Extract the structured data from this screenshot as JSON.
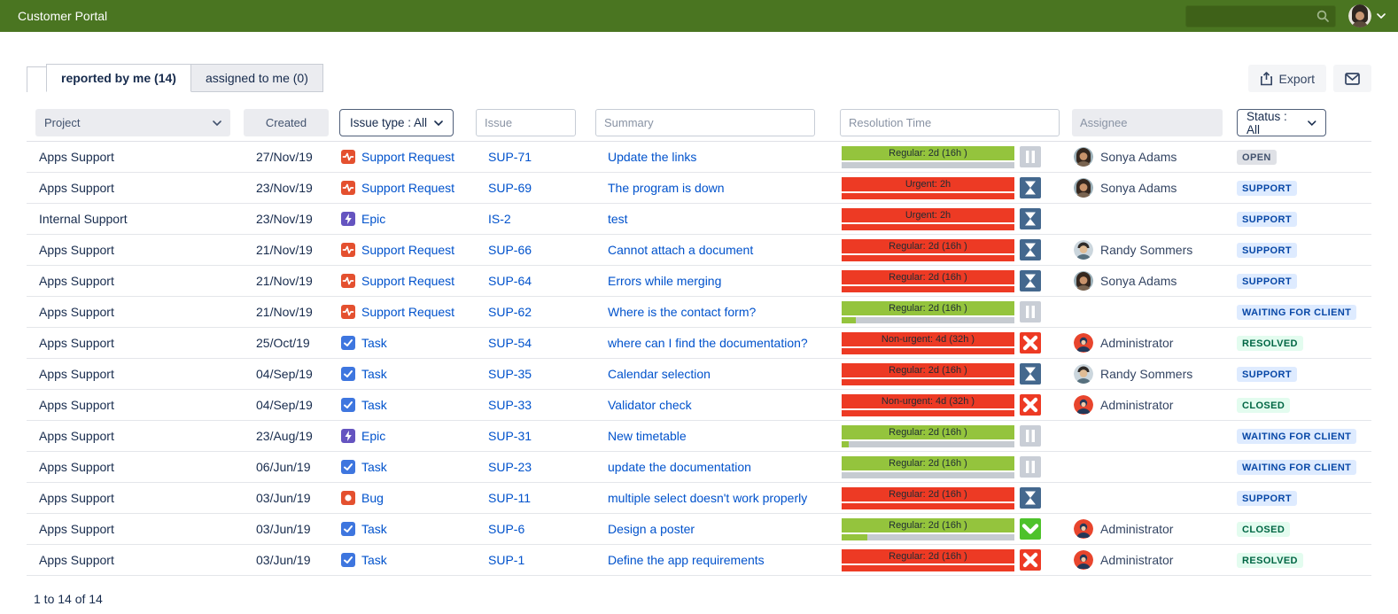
{
  "header": {
    "title": "Customer Portal",
    "search_placeholder": ""
  },
  "tabs": [
    {
      "label": "reported by me (14)",
      "active": true
    },
    {
      "label": "assigned to me (0)",
      "active": false
    }
  ],
  "toolbar": {
    "export_label": "Export"
  },
  "filters": {
    "project": "Project",
    "created": "Created",
    "issue_type": "Issue type : All",
    "issue_placeholder": "Issue",
    "summary_placeholder": "Summary",
    "resolution_placeholder": "Resolution Time",
    "assignee_placeholder": "Assignee",
    "status": "Status : All"
  },
  "footer": {
    "range_text": "1 to 14 of 14"
  },
  "colors": {
    "topbar": "#4A7521",
    "link": "#0052CC",
    "bar_green": "#94C43D",
    "bar_red": "#ED3A24",
    "icon_hourglass": "#44688E",
    "icon_pause": "#C9CED6",
    "icon_check": "#4EC22B",
    "badge_blue_bg": "#DEEBFF",
    "badge_green_bg": "#E3FCEF"
  },
  "rows": [
    {
      "project": "Apps Support",
      "created": "27/Nov/19",
      "type": {
        "name": "Support Request",
        "icon": "support-request"
      },
      "key": "SUP-71",
      "summary": "Update the links",
      "resolution": {
        "label": "Regular: 2d (16h )",
        "bar": "green",
        "sub_pct": 0,
        "icon": "pause"
      },
      "assignee": {
        "name": "Sonya Adams",
        "avatar": "sonya"
      },
      "status": {
        "label": "OPEN",
        "kind": "grey"
      }
    },
    {
      "project": "Apps Support",
      "created": "23/Nov/19",
      "type": {
        "name": "Support Request",
        "icon": "support-request"
      },
      "key": "SUP-69",
      "summary": "The program is down",
      "resolution": {
        "label": "Urgent: 2h",
        "bar": "red",
        "sub_pct": 100,
        "icon": "hourglass"
      },
      "assignee": {
        "name": "Sonya Adams",
        "avatar": "sonya"
      },
      "status": {
        "label": "SUPPORT",
        "kind": "blue"
      }
    },
    {
      "project": "Internal Support",
      "created": "23/Nov/19",
      "type": {
        "name": "Epic",
        "icon": "epic"
      },
      "key": "IS-2",
      "summary": "test",
      "resolution": {
        "label": "Urgent: 2h",
        "bar": "red",
        "sub_pct": 100,
        "icon": "hourglass"
      },
      "assignee": null,
      "status": {
        "label": "SUPPORT",
        "kind": "blue"
      }
    },
    {
      "project": "Apps Support",
      "created": "21/Nov/19",
      "type": {
        "name": "Support Request",
        "icon": "support-request"
      },
      "key": "SUP-66",
      "summary": "Cannot attach a document",
      "resolution": {
        "label": "Regular: 2d (16h )",
        "bar": "red",
        "sub_pct": 100,
        "icon": "hourglass"
      },
      "assignee": {
        "name": "Randy Sommers",
        "avatar": "randy"
      },
      "status": {
        "label": "SUPPORT",
        "kind": "blue"
      }
    },
    {
      "project": "Apps Support",
      "created": "21/Nov/19",
      "type": {
        "name": "Support Request",
        "icon": "support-request"
      },
      "key": "SUP-64",
      "summary": "Errors while merging",
      "resolution": {
        "label": "Regular: 2d (16h )",
        "bar": "red",
        "sub_pct": 100,
        "icon": "hourglass"
      },
      "assignee": {
        "name": "Sonya Adams",
        "avatar": "sonya"
      },
      "status": {
        "label": "SUPPORT",
        "kind": "blue"
      }
    },
    {
      "project": "Apps Support",
      "created": "21/Nov/19",
      "type": {
        "name": "Support Request",
        "icon": "support-request"
      },
      "key": "SUP-62",
      "summary": "Where is the contact form?",
      "resolution": {
        "label": "Regular: 2d (16h )",
        "bar": "green",
        "sub_pct": 8,
        "icon": "pause"
      },
      "assignee": null,
      "status": {
        "label": "WAITING FOR CLIENT",
        "kind": "blue"
      }
    },
    {
      "project": "Apps Support",
      "created": "25/Oct/19",
      "type": {
        "name": "Task",
        "icon": "task"
      },
      "key": "SUP-54",
      "summary": "where can I find the documentation?",
      "resolution": {
        "label": "Non-urgent: 4d (32h )",
        "bar": "red",
        "sub_pct": 100,
        "icon": "x"
      },
      "assignee": {
        "name": "Administrator",
        "avatar": "admin"
      },
      "status": {
        "label": "RESOLVED",
        "kind": "green"
      }
    },
    {
      "project": "Apps Support",
      "created": "04/Sep/19",
      "type": {
        "name": "Task",
        "icon": "task"
      },
      "key": "SUP-35",
      "summary": "Calendar selection",
      "resolution": {
        "label": "Regular: 2d (16h )",
        "bar": "red",
        "sub_pct": 100,
        "icon": "hourglass"
      },
      "assignee": {
        "name": "Randy Sommers",
        "avatar": "randy"
      },
      "status": {
        "label": "SUPPORT",
        "kind": "blue"
      }
    },
    {
      "project": "Apps Support",
      "created": "04/Sep/19",
      "type": {
        "name": "Task",
        "icon": "task"
      },
      "key": "SUP-33",
      "summary": "Validator check",
      "resolution": {
        "label": "Non-urgent: 4d (32h )",
        "bar": "red",
        "sub_pct": 100,
        "icon": "x"
      },
      "assignee": {
        "name": "Administrator",
        "avatar": "admin"
      },
      "status": {
        "label": "CLOSED",
        "kind": "green"
      }
    },
    {
      "project": "Apps Support",
      "created": "23/Aug/19",
      "type": {
        "name": "Epic",
        "icon": "epic"
      },
      "key": "SUP-31",
      "summary": "New timetable",
      "resolution": {
        "label": "Regular: 2d (16h )",
        "bar": "green",
        "sub_pct": 4,
        "icon": "pause"
      },
      "assignee": null,
      "status": {
        "label": "WAITING FOR CLIENT",
        "kind": "blue"
      }
    },
    {
      "project": "Apps Support",
      "created": "06/Jun/19",
      "type": {
        "name": "Task",
        "icon": "task"
      },
      "key": "SUP-23",
      "summary": "update the documentation",
      "resolution": {
        "label": "Regular: 2d (16h )",
        "bar": "green",
        "sub_pct": 0,
        "icon": "pause"
      },
      "assignee": null,
      "status": {
        "label": "WAITING FOR CLIENT",
        "kind": "blue"
      }
    },
    {
      "project": "Apps Support",
      "created": "03/Jun/19",
      "type": {
        "name": "Bug",
        "icon": "bug"
      },
      "key": "SUP-11",
      "summary": "multiple select doesn't work properly",
      "resolution": {
        "label": "Regular: 2d (16h )",
        "bar": "red",
        "sub_pct": 100,
        "icon": "hourglass"
      },
      "assignee": null,
      "status": {
        "label": "SUPPORT",
        "kind": "blue"
      }
    },
    {
      "project": "Apps Support",
      "created": "03/Jun/19",
      "type": {
        "name": "Task",
        "icon": "task"
      },
      "key": "SUP-6",
      "summary": "Design a poster",
      "resolution": {
        "label": "Regular: 2d (16h )",
        "bar": "green",
        "sub_pct": 15,
        "icon": "check"
      },
      "assignee": {
        "name": "Administrator",
        "avatar": "admin"
      },
      "status": {
        "label": "CLOSED",
        "kind": "green"
      }
    },
    {
      "project": "Apps Support",
      "created": "03/Jun/19",
      "type": {
        "name": "Task",
        "icon": "task"
      },
      "key": "SUP-1",
      "summary": "Define the app requirements",
      "resolution": {
        "label": "Regular: 2d (16h )",
        "bar": "red",
        "sub_pct": 100,
        "icon": "x"
      },
      "assignee": {
        "name": "Administrator",
        "avatar": "admin"
      },
      "status": {
        "label": "RESOLVED",
        "kind": "green"
      }
    }
  ]
}
